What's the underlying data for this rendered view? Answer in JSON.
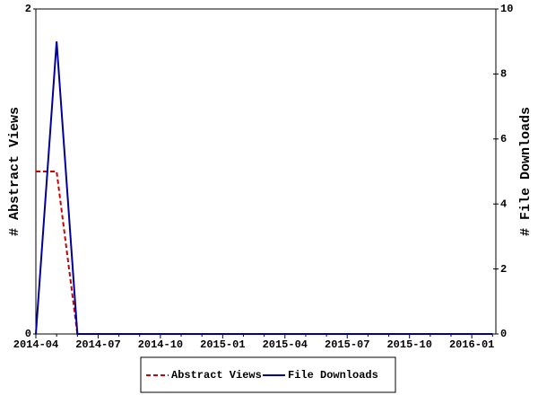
{
  "chart_data": {
    "type": "line",
    "categories": [
      "2014-04",
      null,
      null,
      "2014-07",
      null,
      null,
      "2014-10",
      null,
      null,
      "2015-01",
      null,
      null,
      "2015-04",
      null,
      null,
      "2015-07",
      null,
      null,
      "2015-10",
      null,
      null,
      "2016-01",
      null
    ],
    "series": [
      {
        "name": "Abstract Views",
        "color": "#cc0000",
        "dash": true,
        "axis": "y",
        "values": [
          1,
          1,
          0,
          0,
          0,
          0,
          0,
          0,
          0,
          0,
          0,
          0,
          0,
          0,
          0,
          0,
          0,
          0,
          0,
          0,
          0,
          0,
          0
        ]
      },
      {
        "name": "File Downloads",
        "color": "#000099",
        "dash": false,
        "axis": "y2",
        "values": [
          0,
          9,
          0,
          0,
          0,
          0,
          0,
          0,
          0,
          0,
          0,
          0,
          0,
          0,
          0,
          0,
          0,
          0,
          0,
          0,
          0,
          0,
          0
        ]
      }
    ],
    "ylabel": "# Abstract Views",
    "y2label": "# File Downloads",
    "ylim": [
      0,
      2
    ],
    "yticks": [
      0,
      2
    ],
    "y2lim": [
      0,
      10
    ],
    "y2ticks": [
      0,
      2,
      4,
      6,
      8,
      10
    ],
    "grid": false,
    "legend": "bottom"
  }
}
